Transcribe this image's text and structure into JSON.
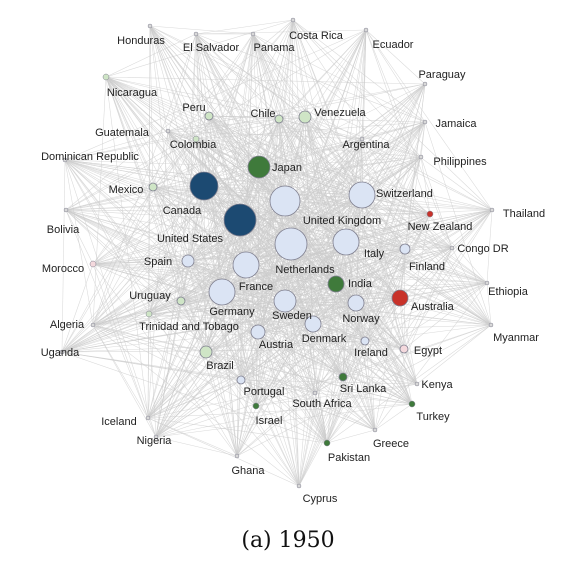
{
  "figure": {
    "caption": "(a) 1950",
    "colors": {
      "edge": "#cccccc",
      "node_outline": "#7f7f8f",
      "label": "#222222"
    },
    "nodes": [
      {
        "id": "honduras",
        "label": "Honduras",
        "color": "#d9d9d9",
        "r": 2
      },
      {
        "id": "el-salvador",
        "label": "El Salvador",
        "color": "#d9d9d9",
        "r": 2
      },
      {
        "id": "panama",
        "label": "Panama",
        "color": "#d9d9d9",
        "r": 2
      },
      {
        "id": "costa-rica",
        "label": "Costa Rica",
        "color": "#d9d9d9",
        "r": 2
      },
      {
        "id": "ecuador",
        "label": "Ecuador",
        "color": "#d9d9d9",
        "r": 2
      },
      {
        "id": "paraguay",
        "label": "Paraguay",
        "color": "#d9d9d9",
        "r": 2
      },
      {
        "id": "nicaragua",
        "label": "Nicaragua",
        "color": "#cfe5c6",
        "r": 3
      },
      {
        "id": "peru",
        "label": "Peru",
        "color": "#cfe5c6",
        "r": 4
      },
      {
        "id": "chile",
        "label": "Chile",
        "color": "#cfe5c6",
        "r": 4
      },
      {
        "id": "venezuela",
        "label": "Venezuela",
        "color": "#cfe5c6",
        "r": 6
      },
      {
        "id": "jamaica",
        "label": "Jamaica",
        "color": "#d9d9d9",
        "r": 2
      },
      {
        "id": "guatemala",
        "label": "Guatemala",
        "color": "#d9d9d9",
        "r": 2
      },
      {
        "id": "colombia",
        "label": "Colombia",
        "color": "#cfe5c6",
        "r": 3
      },
      {
        "id": "argentina",
        "label": "Argentina",
        "color": "#d9d9d9",
        "r": 2
      },
      {
        "id": "philippines",
        "label": "Philippines",
        "color": "#d9d9d9",
        "r": 2
      },
      {
        "id": "dominican-republic",
        "label": "Dominican Republic",
        "color": "#d9d9d9",
        "r": 2
      },
      {
        "id": "japan",
        "label": "Japan",
        "color": "#3f7a3b",
        "r": 11
      },
      {
        "id": "mexico",
        "label": "Mexico",
        "color": "#cfe5c6",
        "r": 4
      },
      {
        "id": "canada",
        "label": "Canada",
        "color": "#1c4a72",
        "r": 14
      },
      {
        "id": "switzerland",
        "label": "Switzerland",
        "color": "#dbe4f4",
        "r": 13
      },
      {
        "id": "united-kingdom",
        "label": "United Kingdom",
        "color": "#dbe4f4",
        "r": 15
      },
      {
        "id": "thailand",
        "label": "Thailand",
        "color": "#d9d9d9",
        "r": 2
      },
      {
        "id": "new-zealand",
        "label": "New Zealand",
        "color": "#c8322a",
        "r": 3
      },
      {
        "id": "bolivia",
        "label": "Bolivia",
        "color": "#d9d9d9",
        "r": 2
      },
      {
        "id": "united-states",
        "label": "United States",
        "color": "#1c4a72",
        "r": 16
      },
      {
        "id": "netherlands",
        "label": "Netherlands",
        "color": "#dbe4f4",
        "r": 16
      },
      {
        "id": "italy",
        "label": "Italy",
        "color": "#dbe4f4",
        "r": 13
      },
      {
        "id": "congo-dr",
        "label": "Congo DR",
        "color": "#d9d9d9",
        "r": 2
      },
      {
        "id": "morocco",
        "label": "Morocco",
        "color": "#f4d9dd",
        "r": 3
      },
      {
        "id": "spain",
        "label": "Spain",
        "color": "#dbe4f4",
        "r": 6
      },
      {
        "id": "finland",
        "label": "Finland",
        "color": "#dbe4f4",
        "r": 5
      },
      {
        "id": "india",
        "label": "India",
        "color": "#3f7a3b",
        "r": 8
      },
      {
        "id": "france",
        "label": "France",
        "color": "#dbe4f4",
        "r": 13
      },
      {
        "id": "ethiopia",
        "label": "Ethiopia",
        "color": "#d9d9d9",
        "r": 2
      },
      {
        "id": "australia",
        "label": "Australia",
        "color": "#c8322a",
        "r": 8
      },
      {
        "id": "uruguay",
        "label": "Uruguay",
        "color": "#cfe5c6",
        "r": 4
      },
      {
        "id": "germany",
        "label": "Germany",
        "color": "#dbe4f4",
        "r": 13
      },
      {
        "id": "sweden",
        "label": "Sweden",
        "color": "#dbe4f4",
        "r": 11
      },
      {
        "id": "norway",
        "label": "Norway",
        "color": "#dbe4f4",
        "r": 8
      },
      {
        "id": "algeria",
        "label": "Algeria",
        "color": "#d9d9d9",
        "r": 2
      },
      {
        "id": "trinidad-and-tobago",
        "label": "Trinidad and Tobago",
        "color": "#cfe5c6",
        "r": 3
      },
      {
        "id": "denmark",
        "label": "Denmark",
        "color": "#dbe4f4",
        "r": 8
      },
      {
        "id": "myanmar",
        "label": "Myanmar",
        "color": "#d9d9d9",
        "r": 2
      },
      {
        "id": "uganda",
        "label": "Uganda",
        "color": "#d9d9d9",
        "r": 2
      },
      {
        "id": "austria",
        "label": "Austria",
        "color": "#dbe4f4",
        "r": 7
      },
      {
        "id": "ireland",
        "label": "Ireland",
        "color": "#dbe4f4",
        "r": 4
      },
      {
        "id": "egypt",
        "label": "Egypt",
        "color": "#f4d9dd",
        "r": 4
      },
      {
        "id": "brazil",
        "label": "Brazil",
        "color": "#cfe5c6",
        "r": 6
      },
      {
        "id": "sri-lanka",
        "label": "Sri Lanka",
        "color": "#3f7a3b",
        "r": 4
      },
      {
        "id": "portugal",
        "label": "Portugal",
        "color": "#dbe4f4",
        "r": 4
      },
      {
        "id": "kenya",
        "label": "Kenya",
        "color": "#d9d9d9",
        "r": 2
      },
      {
        "id": "south-africa",
        "label": "South Africa",
        "color": "#d9d9d9",
        "r": 2
      },
      {
        "id": "israel",
        "label": "Israel",
        "color": "#3f7a3b",
        "r": 3
      },
      {
        "id": "turkey",
        "label": "Turkey",
        "color": "#3f7a3b",
        "r": 3
      },
      {
        "id": "iceland",
        "label": "Iceland",
        "color": "#d9d9d9",
        "r": 2
      },
      {
        "id": "nigeria",
        "label": "Nigeria",
        "color": "#d9d9d9",
        "r": 2
      },
      {
        "id": "greece",
        "label": "Greece",
        "color": "#d9d9d9",
        "r": 2
      },
      {
        "id": "pakistan",
        "label": "Pakistan",
        "color": "#3f7a3b",
        "r": 3
      },
      {
        "id": "ghana",
        "label": "Ghana",
        "color": "#d9d9d9",
        "r": 2
      },
      {
        "id": "cyprus",
        "label": "Cyprus",
        "color": "#d9d9d9",
        "r": 2
      }
    ]
  }
}
